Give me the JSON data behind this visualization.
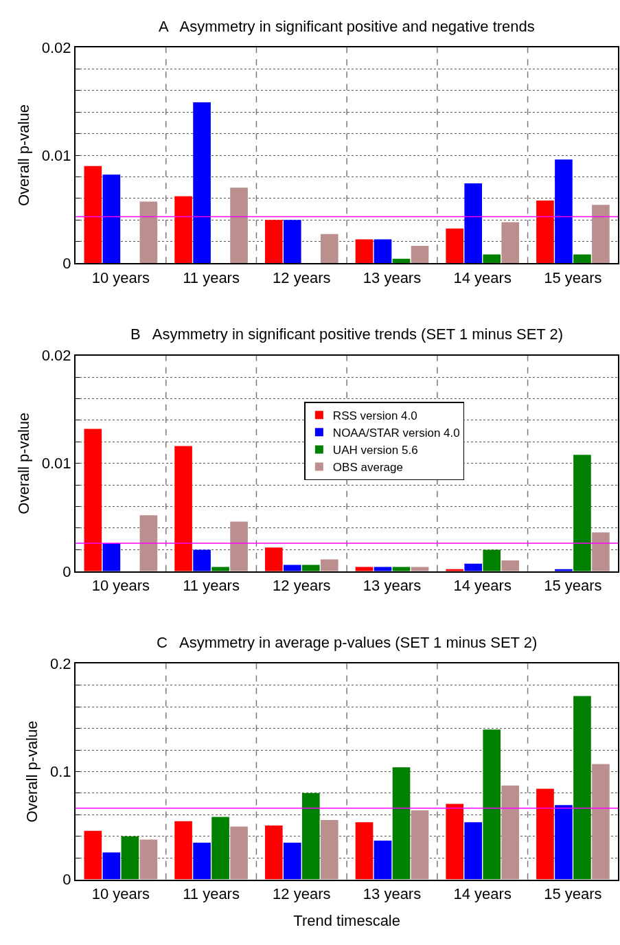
{
  "chart_data": [
    {
      "type": "bar",
      "title": "A   Asymmetry in significant positive and negative trends",
      "ylabel": "Overall p-value",
      "categories": [
        "10 years",
        "11 years",
        "12 years",
        "13 years",
        "14 years",
        "15 years"
      ],
      "series": [
        {
          "color": "#ff0000",
          "values": [
            0.009,
            0.0062,
            0.004,
            0.0022,
            0.0032,
            0.0058
          ]
        },
        {
          "color": "#0000ff",
          "values": [
            0.0082,
            0.0149,
            0.004,
            0.0022,
            0.0074,
            0.0096
          ]
        },
        {
          "color": "#008000",
          "values": [
            null,
            null,
            null,
            0.0004,
            0.0008,
            0.0008
          ]
        },
        {
          "color": "#bc8f8f",
          "values": [
            0.0057,
            0.007,
            0.0027,
            0.0016,
            0.0038,
            0.0054
          ]
        }
      ],
      "ylim": [
        0,
        0.02
      ],
      "yticks": [
        0,
        {
          "value": 0.002,
          "label": null
        },
        {
          "value": 0.004,
          "label": null
        },
        {
          "value": 0.006,
          "label": null
        },
        {
          "value": 0.008,
          "label": null
        },
        0.01,
        {
          "value": 0.012,
          "label": null
        },
        {
          "value": 0.014,
          "label": null
        },
        {
          "value": 0.016,
          "label": null
        },
        {
          "value": 0.018,
          "label": null
        },
        0.02
      ],
      "ref_lines": [
        {
          "axis": "y",
          "value": 0.0043,
          "color": "#ff00ff"
        }
      ],
      "grid": true,
      "legend": false
    },
    {
      "type": "bar",
      "title": "B   Asymmetry in significant positive trends (SET 1 minus SET 2)",
      "ylabel": "Overall p-value",
      "categories": [
        "10 years",
        "11 years",
        "12 years",
        "13 years",
        "14 years",
        "15 years"
      ],
      "series": [
        {
          "name": "RSS version 4.0",
          "color": "#ff0000",
          "values": [
            0.0132,
            0.0116,
            0.0022,
            0.0004,
            0.0002,
            null
          ]
        },
        {
          "name": "NOAA/STAR version 4.0",
          "color": "#0000ff",
          "values": [
            0.0026,
            0.002,
            0.0006,
            0.0004,
            0.0007,
            0.0002
          ]
        },
        {
          "name": "UAH version 5.6",
          "color": "#008000",
          "values": [
            null,
            0.0004,
            0.0006,
            0.0004,
            0.002,
            0.0108
          ]
        },
        {
          "name": "OBS average",
          "color": "#bc8f8f",
          "values": [
            0.0052,
            0.0046,
            0.0011,
            0.0004,
            0.001,
            0.0036
          ]
        }
      ],
      "ylim": [
        0,
        0.02
      ],
      "yticks": [
        0,
        {
          "value": 0.002,
          "label": null
        },
        {
          "value": 0.004,
          "label": null
        },
        {
          "value": 0.006,
          "label": null
        },
        {
          "value": 0.008,
          "label": null
        },
        0.01,
        {
          "value": 0.012,
          "label": null
        },
        {
          "value": 0.014,
          "label": null
        },
        {
          "value": 0.016,
          "label": null
        },
        {
          "value": 0.018,
          "label": null
        },
        0.02
      ],
      "ref_lines": [
        {
          "axis": "y",
          "value": 0.0026,
          "color": "#ff00ff"
        }
      ],
      "grid": true,
      "legend": "top"
    },
    {
      "type": "bar",
      "title": "C   Asymmetry in average p-values (SET 1 minus SET 2)",
      "ylabel": "Overall p-value",
      "xlabel": "Trend timescale",
      "categories": [
        "10 years",
        "11 years",
        "12 years",
        "13 years",
        "14 years",
        "15 years"
      ],
      "series": [
        {
          "color": "#ff0000",
          "values": [
            0.045,
            0.054,
            0.05,
            0.053,
            0.07,
            0.084
          ]
        },
        {
          "color": "#0000ff",
          "values": [
            0.025,
            0.034,
            0.034,
            0.036,
            0.053,
            0.069
          ]
        },
        {
          "color": "#008000",
          "values": [
            0.04,
            0.058,
            0.08,
            0.104,
            0.139,
            0.17
          ]
        },
        {
          "color": "#bc8f8f",
          "values": [
            0.037,
            0.049,
            0.055,
            0.064,
            0.087,
            0.107
          ]
        }
      ],
      "ylim": [
        0,
        0.2
      ],
      "yticks": [
        0,
        {
          "value": 0.02,
          "label": null
        },
        {
          "value": 0.04,
          "label": null
        },
        {
          "value": 0.06,
          "label": null
        },
        {
          "value": 0.08,
          "label": null
        },
        0.1,
        {
          "value": 0.12,
          "label": null
        },
        {
          "value": 0.14,
          "label": null
        },
        {
          "value": 0.16,
          "label": null
        },
        {
          "value": 0.18,
          "label": null
        },
        0.2
      ],
      "ref_lines": [
        {
          "axis": "y",
          "value": 0.066,
          "color": "#ff00ff"
        }
      ],
      "grid": true,
      "legend": false
    }
  ]
}
